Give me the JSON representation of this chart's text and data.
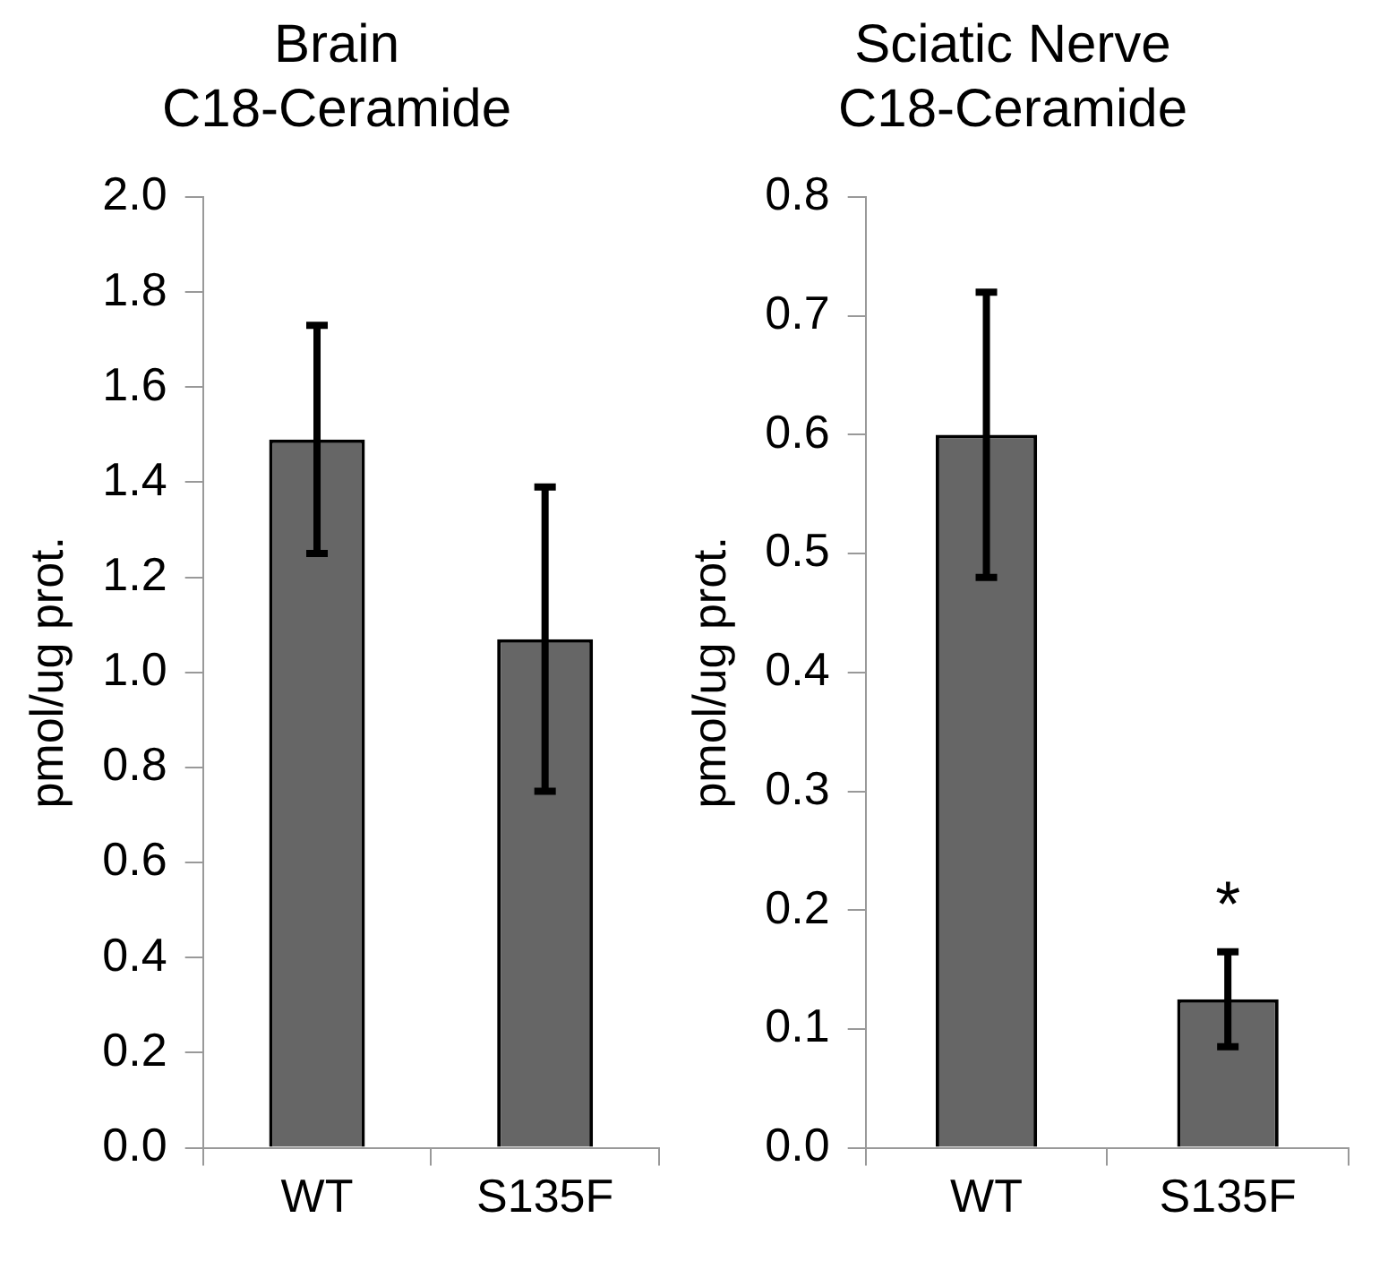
{
  "chart_data": [
    {
      "type": "bar",
      "title": "Brain\nC18-Ceramide",
      "ylabel": "pmol/ug prot.",
      "categories": [
        "WT",
        "S135F"
      ],
      "values": [
        1.49,
        1.07
      ],
      "errors": [
        0.24,
        0.32
      ],
      "color": "#666666",
      "ylim": [
        0,
        2.0
      ],
      "yticks": [
        {
          "value": 0,
          "label": "0.0"
        },
        {
          "value": 0.2,
          "label": "0.2"
        },
        {
          "value": 0.4,
          "label": "0.4"
        },
        {
          "value": 0.6,
          "label": "0.6"
        },
        {
          "value": 0.8,
          "label": "0.8"
        },
        {
          "value": 1.0,
          "label": "1.0"
        },
        {
          "value": 1.2,
          "label": "1.2"
        },
        {
          "value": 1.4,
          "label": "1.4"
        },
        {
          "value": 1.6,
          "label": "1.6"
        },
        {
          "value": 1.8,
          "label": "1.8"
        },
        {
          "value": 2.0,
          "label": "2.0"
        }
      ],
      "grid": false,
      "legend": false
    },
    {
      "type": "bar",
      "title": "Sciatic Nerve\nC18-Ceramide",
      "ylabel": "pmol/ug prot.",
      "categories": [
        "WT",
        "S135F"
      ],
      "values": [
        0.6,
        0.125
      ],
      "errors": [
        0.12,
        0.04
      ],
      "color": "#666666",
      "ylim": [
        0,
        0.8
      ],
      "yticks": [
        {
          "value": 0,
          "label": "0.0"
        },
        0.1,
        0.2,
        0.3,
        0.4,
        0.5,
        0.6,
        0.7,
        0.8
      ],
      "grid": false,
      "legend": false,
      "annotations": [
        "*"
      ]
    }
  ]
}
